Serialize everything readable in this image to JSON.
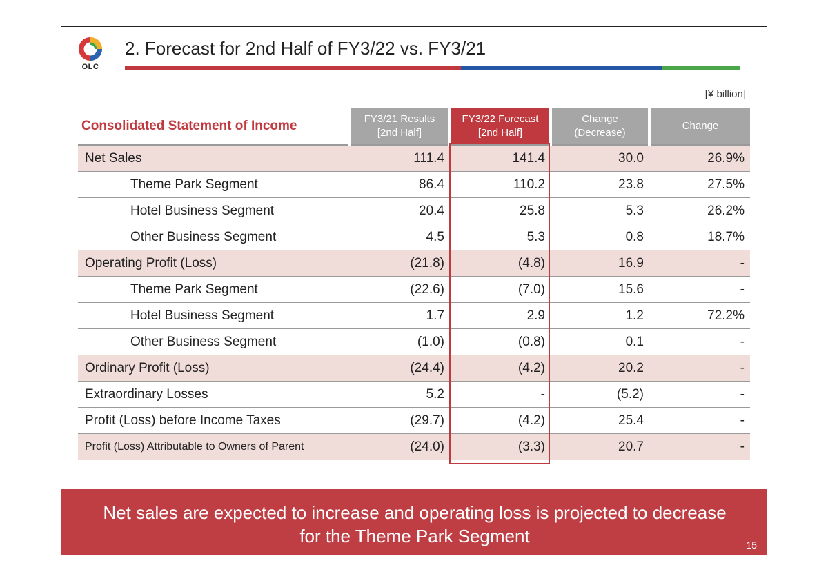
{
  "header": {
    "logo_text": "OLC",
    "title": "2. Forecast for 2nd Half of FY3/22 vs. FY3/21",
    "rule_colors": [
      "#c0393f",
      "#2458a6",
      "#4aa84a"
    ]
  },
  "unit_label": "[¥ billion]",
  "table": {
    "title": "Consolidated Statement of Income",
    "columns": [
      {
        "line1": "FY3/21 Results",
        "line2": "[2nd Half]"
      },
      {
        "line1": "FY3/22 Forecast",
        "line2": "[2nd Half]"
      },
      {
        "line1": "Change",
        "line2": "(Decrease)"
      },
      {
        "line1": "Change",
        "line2": ""
      }
    ],
    "rows": [
      {
        "label": "Net Sales",
        "v1": "111.4",
        "v2": "141.4",
        "v3": "30.0",
        "v4": "26.9%"
      },
      {
        "label": "Theme Park Segment",
        "v1": "86.4",
        "v2": "110.2",
        "v3": "23.8",
        "v4": "27.5%"
      },
      {
        "label": "Hotel Business Segment",
        "v1": "20.4",
        "v2": "25.8",
        "v3": "5.3",
        "v4": "26.2%"
      },
      {
        "label": "Other Business Segment",
        "v1": "4.5",
        "v2": "5.3",
        "v3": "0.8",
        "v4": "18.7%"
      },
      {
        "label": "Operating Profit (Loss)",
        "v1": "(21.8)",
        "v2": "(4.8)",
        "v3": "16.9",
        "v4": "-"
      },
      {
        "label": "Theme Park Segment",
        "v1": "(22.6)",
        "v2": "(7.0)",
        "v3": "15.6",
        "v4": "-"
      },
      {
        "label": "Hotel Business Segment",
        "v1": "1.7",
        "v2": "2.9",
        "v3": "1.2",
        "v4": "72.2%"
      },
      {
        "label": "Other Business Segment",
        "v1": "(1.0)",
        "v2": "(0.8)",
        "v3": "0.1",
        "v4": "-"
      },
      {
        "label": "Ordinary Profit (Loss)",
        "v1": "(24.4)",
        "v2": "(4.2)",
        "v3": "20.2",
        "v4": "-"
      },
      {
        "label": "Extraordinary Losses",
        "v1": "5.2",
        "v2": "-",
        "v3": "(5.2)",
        "v4": "-"
      },
      {
        "label": "Profit (Loss) before Income Taxes",
        "v1": "(29.7)",
        "v2": "(4.2)",
        "v3": "25.4",
        "v4": "-"
      },
      {
        "label": "Profit (Loss) Attributable to Owners of Parent",
        "v1": "(24.0)",
        "v2": "(3.3)",
        "v3": "20.7",
        "v4": "-"
      }
    ]
  },
  "banner": {
    "line1": "Net sales are expected to increase and operating loss is projected to decrease",
    "line2": "for the Theme Park Segment",
    "background": "#be3e44"
  },
  "page_number": "15"
}
